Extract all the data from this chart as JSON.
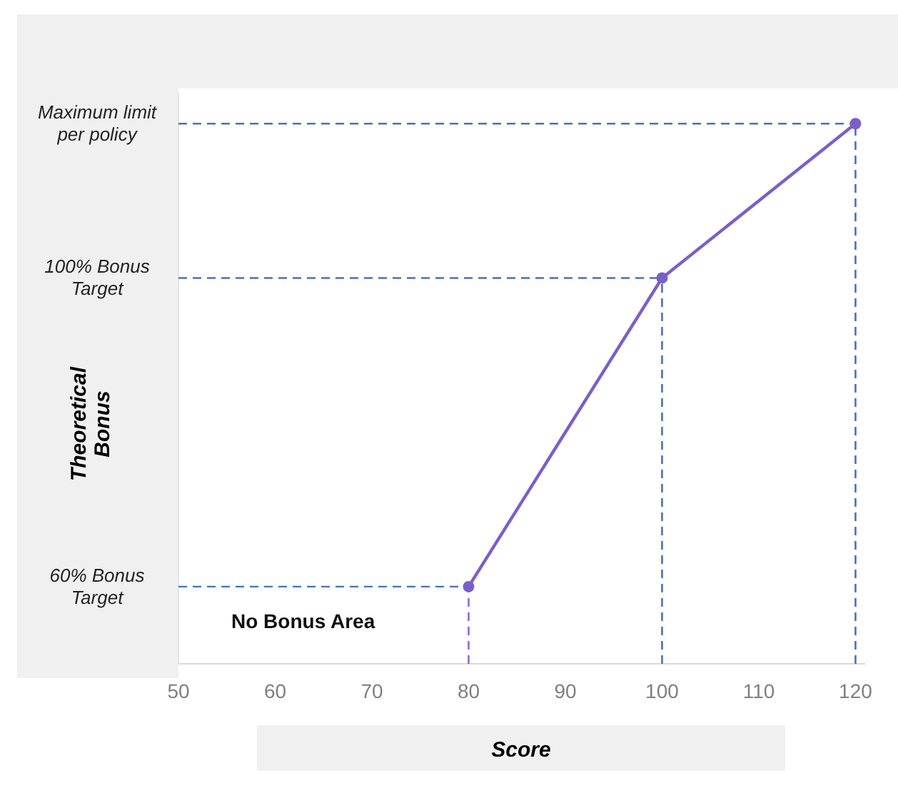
{
  "chart_data": {
    "type": "line",
    "xlabel": "Score",
    "ylabel": "Theoretical Bonus",
    "x": [
      80,
      100,
      120
    ],
    "series": [
      {
        "color": "#7b5fc9",
        "values": [
          60,
          100,
          120
        ]
      }
    ],
    "marker": "circle",
    "xlim": [
      50,
      121
    ],
    "xticks": [
      50,
      60,
      70,
      80,
      90,
      100,
      110,
      120
    ],
    "ylim": [
      50,
      124
    ],
    "yticks": [
      {
        "value": 60,
        "label": "60% Bonus Target"
      },
      {
        "value": 100,
        "label": "100% Bonus Target"
      },
      {
        "value": 120,
        "label": "Maximum limit per policy"
      }
    ],
    "ref_lines": [
      {
        "axis": "y",
        "value": 60,
        "color": "#4472c4",
        "line_style": "dashed"
      },
      {
        "axis": "y",
        "value": 100,
        "color": "#4472c4",
        "line_style": "dashed"
      },
      {
        "axis": "y",
        "value": 120,
        "color": "#4472c4",
        "line_style": "dashed"
      },
      {
        "axis": "x",
        "value": 80,
        "color": "#9966cc",
        "line_style": "dashed"
      },
      {
        "axis": "x",
        "value": 100,
        "color": "#4472c4",
        "line_style": "dashed"
      },
      {
        "axis": "x",
        "value": 120,
        "color": "#4472c4",
        "line_style": "dashed"
      }
    ],
    "annotations": [
      "No Bonus Area"
    ]
  }
}
